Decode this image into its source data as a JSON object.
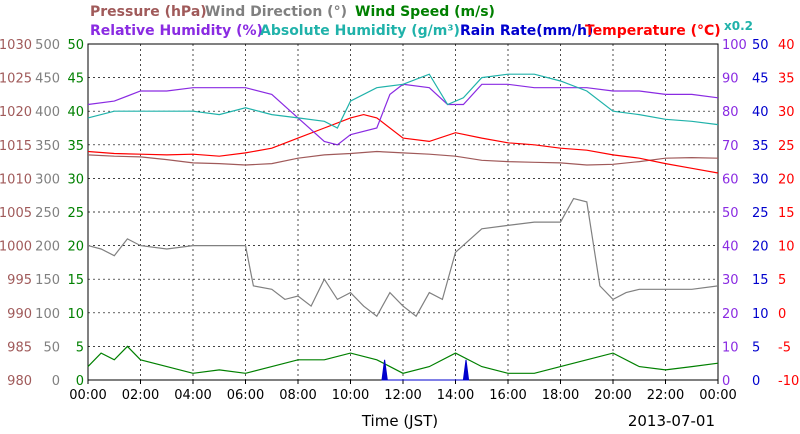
{
  "chart_data": {
    "type": "line",
    "xlabel": "Time (JST)",
    "date": "2013-07-01",
    "x_ticks": [
      "00:00",
      "02:00",
      "04:00",
      "06:00",
      "08:00",
      "10:00",
      "12:00",
      "14:00",
      "16:00",
      "18:00",
      "20:00",
      "22:00",
      "00:00"
    ],
    "legend_row1": [
      {
        "label": "Pressure (hPa)",
        "color": "#a05a5a"
      },
      {
        "label": "Wind Direction (°)",
        "color": "#808080"
      },
      {
        "label": "Wind Speed (m/s)",
        "color": "#008000"
      }
    ],
    "legend_row2": [
      {
        "label": "Relative Humidity (%)",
        "color": "#8a2be2"
      },
      {
        "label": "Absolute Humidity (g/m³)",
        "color": "#20b2aa"
      },
      {
        "label": "Rain Rate(mm/h)",
        "color": "#0000cd"
      },
      {
        "label": "Temperature (°C)",
        "color": "#ff0000"
      }
    ],
    "abs_humidity_scale_note": "x0.2",
    "axes": {
      "pressure": {
        "ticks": [
          980,
          985,
          990,
          995,
          1000,
          1005,
          1010,
          1015,
          1020,
          1025,
          1030
        ],
        "color": "#a05a5a"
      },
      "wind_dir": {
        "ticks": [
          0,
          50,
          100,
          150,
          200,
          250,
          300,
          350,
          400,
          450,
          500
        ],
        "color": "#808080"
      },
      "wind_speed": {
        "ticks": [
          0,
          5,
          10,
          15,
          20,
          25,
          30,
          35,
          40,
          45,
          50
        ],
        "color": "#008000"
      },
      "humidity": {
        "ticks": [
          0,
          10,
          20,
          30,
          40,
          50,
          60,
          70,
          80,
          90,
          100
        ],
        "color": "#8a2be2"
      },
      "abs_humidity": {
        "ticks": [
          0,
          5,
          10,
          15,
          20,
          25,
          30,
          35,
          40,
          45,
          50
        ],
        "color": "#0000cd"
      },
      "temperature": {
        "ticks": [
          -10,
          -5,
          0,
          5,
          10,
          15,
          20,
          25,
          30,
          35,
          40
        ],
        "color": "#ff0000"
      }
    },
    "series": [
      {
        "name": "Pressure (hPa)",
        "color": "#a05a5a",
        "axis": "pressure",
        "points": [
          [
            0,
            1013.5
          ],
          [
            1,
            1013.3
          ],
          [
            2,
            1013.2
          ],
          [
            3,
            1012.8
          ],
          [
            4,
            1012.3
          ],
          [
            5,
            1012.2
          ],
          [
            6,
            1012.0
          ],
          [
            7,
            1012.2
          ],
          [
            8,
            1013.0
          ],
          [
            9,
            1013.5
          ],
          [
            10,
            1013.7
          ],
          [
            11,
            1014.0
          ],
          [
            12,
            1013.8
          ],
          [
            13,
            1013.6
          ],
          [
            14,
            1013.3
          ],
          [
            15,
            1012.7
          ],
          [
            16,
            1012.5
          ],
          [
            17,
            1012.4
          ],
          [
            18,
            1012.3
          ],
          [
            19,
            1012.0
          ],
          [
            20,
            1012.1
          ],
          [
            21,
            1012.5
          ],
          [
            22,
            1013.0
          ],
          [
            23,
            1013.1
          ],
          [
            24,
            1013.0
          ]
        ]
      },
      {
        "name": "Temperature (°C)",
        "color": "#ff0000",
        "axis": "temperature",
        "points": [
          [
            0,
            24.0
          ],
          [
            1,
            23.7
          ],
          [
            2,
            23.6
          ],
          [
            3,
            23.5
          ],
          [
            4,
            23.6
          ],
          [
            5,
            23.3
          ],
          [
            6,
            23.8
          ],
          [
            7,
            24.5
          ],
          [
            8,
            26.0
          ],
          [
            9,
            27.5
          ],
          [
            10,
            29.0
          ],
          [
            10.5,
            29.5
          ],
          [
            11,
            29.0
          ],
          [
            12,
            26.0
          ],
          [
            13,
            25.5
          ],
          [
            14,
            26.8
          ],
          [
            15,
            26.0
          ],
          [
            16,
            25.3
          ],
          [
            17,
            25.0
          ],
          [
            18,
            24.5
          ],
          [
            19,
            24.2
          ],
          [
            20,
            23.5
          ],
          [
            21,
            23.0
          ],
          [
            22,
            22.2
          ],
          [
            23,
            21.5
          ],
          [
            24,
            20.8
          ]
        ]
      },
      {
        "name": "Relative Humidity (%)",
        "color": "#8a2be2",
        "axis": "humidity",
        "points": [
          [
            0,
            82
          ],
          [
            1,
            83
          ],
          [
            2,
            86
          ],
          [
            3,
            86
          ],
          [
            4,
            87
          ],
          [
            5,
            87
          ],
          [
            6,
            87
          ],
          [
            7,
            85
          ],
          [
            8,
            78
          ],
          [
            9,
            71
          ],
          [
            9.5,
            70
          ],
          [
            10,
            73
          ],
          [
            11,
            75
          ],
          [
            11.5,
            85
          ],
          [
            12,
            88
          ],
          [
            13,
            87
          ],
          [
            13.7,
            82
          ],
          [
            14.3,
            82
          ],
          [
            15,
            88
          ],
          [
            16,
            88
          ],
          [
            17,
            87
          ],
          [
            18,
            87
          ],
          [
            19,
            87
          ],
          [
            20,
            86
          ],
          [
            21,
            86
          ],
          [
            22,
            85
          ],
          [
            23,
            85
          ],
          [
            24,
            84
          ]
        ]
      },
      {
        "name": "Absolute Humidity (g/m³)",
        "color": "#20b2aa",
        "axis": "abs_humidity",
        "points": [
          [
            0,
            39.0
          ],
          [
            1,
            40.0
          ],
          [
            2,
            40.0
          ],
          [
            3,
            40.0
          ],
          [
            4,
            40.0
          ],
          [
            5,
            39.5
          ],
          [
            6,
            40.5
          ],
          [
            7,
            39.5
          ],
          [
            8,
            39.0
          ],
          [
            9,
            38.5
          ],
          [
            9.5,
            37.5
          ],
          [
            10,
            41.5
          ],
          [
            11,
            43.5
          ],
          [
            12,
            44.0
          ],
          [
            13,
            45.5
          ],
          [
            13.7,
            41.0
          ],
          [
            14.3,
            42.0
          ],
          [
            15,
            45.0
          ],
          [
            16,
            45.5
          ],
          [
            17,
            45.5
          ],
          [
            18,
            44.5
          ],
          [
            19,
            43.0
          ],
          [
            20,
            40.0
          ],
          [
            21,
            39.5
          ],
          [
            22,
            38.8
          ],
          [
            23,
            38.5
          ],
          [
            24,
            38.0
          ]
        ]
      },
      {
        "name": "Wind Direction (°)",
        "color": "#808080",
        "axis": "wind_dir",
        "points": [
          [
            0,
            200
          ],
          [
            0.5,
            195
          ],
          [
            1,
            185
          ],
          [
            1.5,
            210
          ],
          [
            2,
            200
          ],
          [
            3,
            195
          ],
          [
            4,
            200
          ],
          [
            5,
            200
          ],
          [
            6,
            200
          ],
          [
            6.3,
            140
          ],
          [
            7,
            135
          ],
          [
            7.5,
            120
          ],
          [
            8,
            125
          ],
          [
            8.5,
            110
          ],
          [
            9,
            150
          ],
          [
            9.5,
            120
          ],
          [
            10,
            130
          ],
          [
            10.5,
            110
          ],
          [
            11,
            95
          ],
          [
            11.5,
            130
          ],
          [
            12,
            110
          ],
          [
            12.5,
            95
          ],
          [
            13,
            130
          ],
          [
            13.5,
            120
          ],
          [
            14,
            190
          ],
          [
            15,
            225
          ],
          [
            16,
            230
          ],
          [
            17,
            235
          ],
          [
            18,
            235
          ],
          [
            18.5,
            270
          ],
          [
            19,
            265
          ],
          [
            19.5,
            140
          ],
          [
            20,
            120
          ],
          [
            20.5,
            130
          ],
          [
            21,
            135
          ],
          [
            22,
            135
          ],
          [
            23,
            135
          ],
          [
            24,
            140
          ]
        ]
      },
      {
        "name": "Wind Speed (m/s)",
        "color": "#008000",
        "axis": "wind_speed",
        "points": [
          [
            0,
            2
          ],
          [
            0.5,
            4
          ],
          [
            1,
            3
          ],
          [
            1.5,
            5
          ],
          [
            2,
            3
          ],
          [
            3,
            2
          ],
          [
            4,
            1
          ],
          [
            5,
            1.5
          ],
          [
            6,
            1
          ],
          [
            7,
            2
          ],
          [
            8,
            3
          ],
          [
            9,
            3
          ],
          [
            10,
            4
          ],
          [
            11,
            3
          ],
          [
            12,
            1
          ],
          [
            13,
            2
          ],
          [
            14,
            4
          ],
          [
            15,
            2
          ],
          [
            16,
            1
          ],
          [
            17,
            1
          ],
          [
            18,
            2
          ],
          [
            19,
            3
          ],
          [
            20,
            4
          ],
          [
            21,
            2
          ],
          [
            22,
            1.5
          ],
          [
            23,
            2
          ],
          [
            24,
            2.5
          ]
        ]
      },
      {
        "name": "Rain Rate(mm/h)",
        "color": "#0000cd",
        "axis": "abs_humidity",
        "points": [
          [
            11.2,
            0
          ],
          [
            11.3,
            3
          ],
          [
            11.4,
            0
          ],
          [
            14.3,
            0
          ],
          [
            14.4,
            3
          ],
          [
            14.5,
            0
          ]
        ]
      }
    ]
  }
}
